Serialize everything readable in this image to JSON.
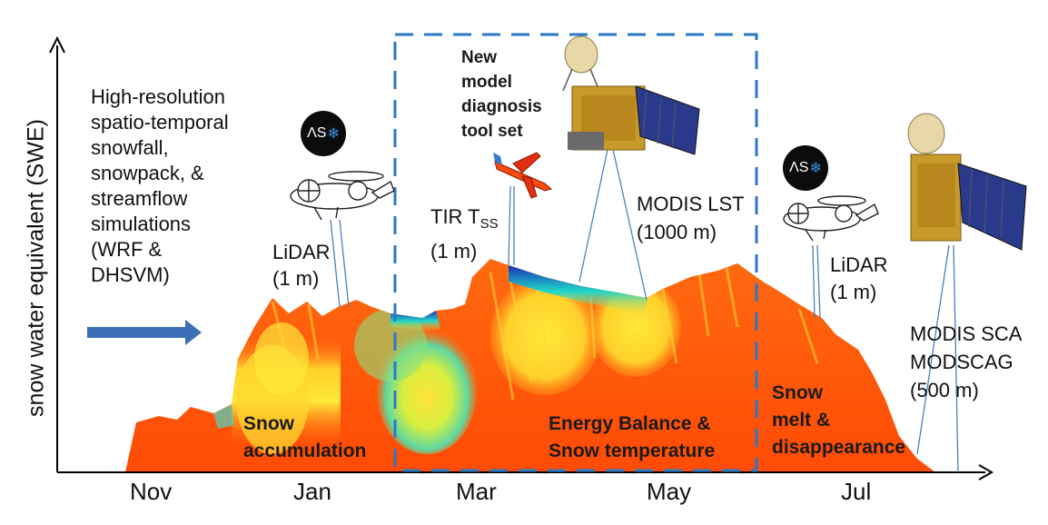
{
  "y_axis_label": "snow water equivalent (SWE)",
  "months": [
    "Nov",
    "Jan",
    "Mar",
    "May",
    "Jul"
  ],
  "left_text": [
    "High-resolution",
    "spatio-temporal",
    "snowfall,",
    "snowpack, &",
    "streamflow",
    "simulations",
    "(WRF &",
    "DHSVM)"
  ],
  "lidar_jan": {
    "line1": "LiDAR",
    "line2": "(1 m)"
  },
  "lidar_jul": {
    "line1": "LiDAR",
    "line2": "(1 m)"
  },
  "tir": {
    "prefix": "TIR T",
    "subscript": "SS",
    "line2": "(1  m)"
  },
  "modis_lst": {
    "line1": "MODIS LST",
    "line2": "(1000 m)"
  },
  "modis_sca": {
    "line1": "MODIS SCA",
    "line2": "MODSCAG",
    "line3": "(500 m)"
  },
  "new_model": [
    "New",
    "model",
    "diagnosis",
    "tool set"
  ],
  "phases": {
    "accumulation": [
      "Snow",
      "accumulation"
    ],
    "energy": [
      "Energy Balance &",
      "Snow temperature"
    ],
    "melt": [
      "Snow",
      "melt &",
      "disappearance"
    ]
  },
  "aso_logo": {
    "text": "ΛS",
    "flake": "❄"
  },
  "icons": [
    "aircraft-icon",
    "airplane-icon",
    "satellite-icon"
  ],
  "colors": {
    "snow_orange": "#ff5a0a",
    "snow_yellow": "#ffe236",
    "snow_cyan": "#1fd8c8",
    "snow_blue": "#1a2fb8",
    "box_blue": "#2a79c4",
    "arrow_blue": "#3c6fb6"
  }
}
